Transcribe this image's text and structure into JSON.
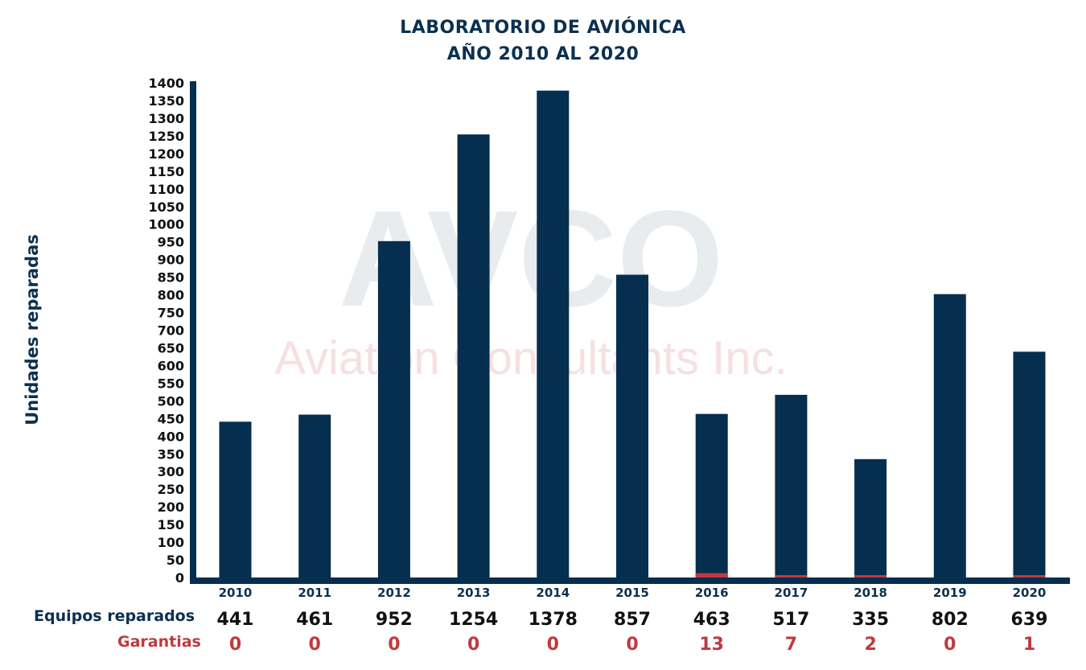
{
  "title_line1": "LABORATORIO DE AVIÓNICA",
  "title_line2": "AÑO 2010 AL 2020",
  "ylabel": "Unidades reparadas",
  "row_labels": {
    "equipos": "Equipos reparados",
    "garantias": "Garantias"
  },
  "watermark": {
    "logo_text": "AVCO",
    "tagline": "Aviation Consultants Inc."
  },
  "colors": {
    "primary": "#062e4f",
    "accent": "#c0393d",
    "title": "#0b3050"
  },
  "chart_data": {
    "type": "bar",
    "title": "LABORATORIO DE AVIÓNICA AÑO 2010 AL 2020",
    "xlabel": "",
    "ylabel": "Unidades reparadas",
    "ylim": [
      0,
      1400
    ],
    "ytick_step": 50,
    "grid": false,
    "categories": [
      "2010",
      "2011",
      "2012",
      "2013",
      "2014",
      "2015",
      "2016",
      "2017",
      "2018",
      "2019",
      "2020"
    ],
    "series": [
      {
        "name": "Equipos reparados",
        "values": [
          441,
          461,
          952,
          1254,
          1378,
          857,
          463,
          517,
          335,
          802,
          639
        ]
      },
      {
        "name": "Garantias",
        "values": [
          0,
          0,
          0,
          0,
          0,
          0,
          13,
          7,
          2,
          0,
          1
        ]
      }
    ]
  }
}
